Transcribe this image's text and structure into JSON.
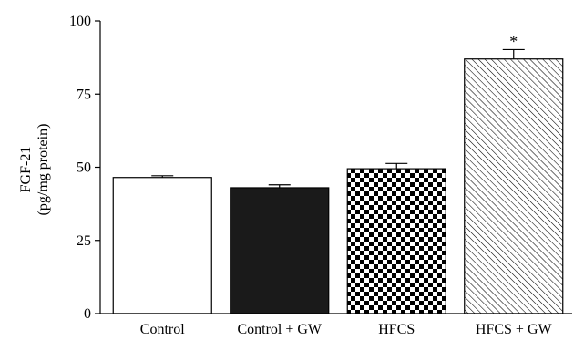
{
  "chart_data": {
    "type": "bar",
    "categories": [
      "Control",
      "Control + GW",
      "HFCS",
      "HFCS + GW"
    ],
    "values": [
      46.5,
      43,
      49.5,
      87
    ],
    "errors": [
      0.6,
      1.0,
      1.8,
      3.2
    ],
    "annotations": [
      "",
      "",
      "",
      "*"
    ],
    "fills": [
      "white",
      "black",
      "checkerboard",
      "diagonal-hatch"
    ],
    "ylabel_lines": [
      "FGF-21",
      "(pg/mg protein)"
    ],
    "xlabel": "",
    "ylim": [
      0,
      100
    ],
    "yticks": [
      0,
      25,
      50,
      75,
      100
    ],
    "grid": false,
    "legend": "none",
    "colors": {
      "bar_edge": "#000000",
      "solid_fill": "#1a1a1a",
      "background": "#ffffff"
    }
  }
}
